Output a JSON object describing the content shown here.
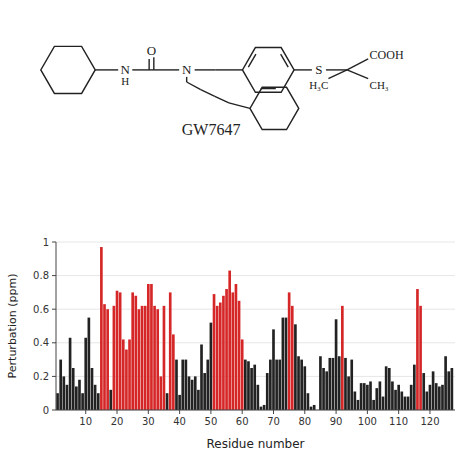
{
  "chart_data": {
    "type": "bar",
    "xlabel": "Residue number",
    "ylabel": "Perturbation (ppm)",
    "annotations": [
      "N",
      "H",
      "O",
      "N",
      "S",
      "COOH",
      "H₃C",
      "CH₃",
      "GW7647"
    ],
    "x": [
      1,
      2,
      3,
      4,
      5,
      6,
      7,
      8,
      9,
      10,
      11,
      12,
      13,
      14,
      15,
      16,
      17,
      18,
      19,
      20,
      21,
      22,
      23,
      24,
      25,
      26,
      27,
      28,
      29,
      30,
      31,
      32,
      33,
      34,
      35,
      36,
      37,
      38,
      39,
      40,
      41,
      42,
      43,
      44,
      45,
      46,
      47,
      48,
      49,
      50,
      51,
      52,
      53,
      54,
      55,
      56,
      57,
      58,
      59,
      60,
      61,
      62,
      63,
      64,
      65,
      66,
      67,
      68,
      69,
      70,
      71,
      72,
      73,
      74,
      75,
      76,
      77,
      78,
      79,
      80,
      81,
      82,
      83,
      84,
      85,
      86,
      87,
      88,
      89,
      90,
      91,
      92,
      93,
      94,
      95,
      96,
      97,
      98,
      99,
      100,
      101,
      102,
      103,
      104,
      105,
      106,
      107,
      108,
      109,
      110,
      111,
      112,
      113,
      114,
      115,
      116,
      117,
      118,
      119,
      120,
      121,
      122,
      123,
      124,
      125,
      126,
      127
    ],
    "values": [
      0.1,
      0.3,
      0.2,
      0.15,
      0.43,
      0.25,
      0.14,
      0.18,
      0.1,
      0.43,
      0.55,
      0.25,
      0.15,
      0.1,
      0.97,
      0.63,
      0.6,
      0.12,
      0.62,
      0.71,
      0.7,
      0.42,
      0.36,
      0.42,
      0.7,
      0.68,
      0.6,
      0.62,
      0.62,
      0.75,
      0.75,
      0.62,
      0.6,
      0.2,
      0.62,
      0.1,
      0.7,
      0.45,
      0.3,
      0.09,
      0.3,
      0.3,
      0.2,
      0.18,
      0.2,
      0.12,
      0.39,
      0.22,
      0.3,
      0.52,
      0.69,
      0.62,
      0.64,
      0.68,
      0.72,
      0.83,
      0.7,
      0.75,
      0.65,
      0.42,
      0.3,
      0.29,
      0.25,
      0.27,
      0.15,
      0.02,
      0.03,
      0.22,
      0.3,
      0.48,
      0.3,
      0.3,
      0.55,
      0.55,
      0.7,
      0.62,
      0.51,
      0.32,
      0.3,
      0.26,
      0.1,
      0.02,
      0.03,
      0.0,
      0.32,
      0.25,
      0.23,
      0.31,
      0.31,
      0.54,
      0.32,
      0.62,
      0.31,
      0.2,
      0.3,
      0.11,
      0.06,
      0.16,
      0.16,
      0.15,
      0.17,
      0.06,
      0.13,
      0.17,
      0.08,
      0.26,
      0.25,
      0.17,
      0.12,
      0.15,
      0.11,
      0.08,
      0.08,
      0.15,
      0.27,
      0.72,
      0.62,
      0.22,
      0.11,
      0.15,
      0.23,
      0.16,
      0.14,
      0.15,
      0.32,
      0.23,
      0.25
    ],
    "colors": [
      "black",
      "black",
      "black",
      "black",
      "black",
      "black",
      "black",
      "black",
      "black",
      "black",
      "black",
      "black",
      "black",
      "black",
      "red",
      "red",
      "red",
      "black",
      "red",
      "red",
      "red",
      "red",
      "red",
      "red",
      "red",
      "red",
      "red",
      "red",
      "red",
      "red",
      "red",
      "red",
      "red",
      "red",
      "red",
      "black",
      "red",
      "red",
      "black",
      "black",
      "black",
      "black",
      "black",
      "black",
      "black",
      "black",
      "black",
      "black",
      "black",
      "black",
      "red",
      "red",
      "red",
      "red",
      "red",
      "red",
      "red",
      "red",
      "red",
      "red",
      "black",
      "black",
      "black",
      "black",
      "black",
      "black",
      "black",
      "black",
      "black",
      "black",
      "black",
      "black",
      "black",
      "black",
      "red",
      "red",
      "black",
      "black",
      "black",
      "black",
      "black",
      "black",
      "black",
      "black",
      "black",
      "black",
      "black",
      "black",
      "black",
      "black",
      "black",
      "red",
      "black",
      "black",
      "black",
      "black",
      "black",
      "black",
      "black",
      "black",
      "black",
      "black",
      "black",
      "black",
      "black",
      "black",
      "black",
      "black",
      "black",
      "black",
      "black",
      "black",
      "black",
      "black",
      "black",
      "red",
      "red",
      "black",
      "black",
      "black",
      "black",
      "black",
      "black",
      "black",
      "black",
      "black",
      "black"
    ],
    "xlim": [
      0.5,
      128
    ],
    "xticks": [
      10,
      20,
      30,
      40,
      50,
      60,
      70,
      80,
      90,
      100,
      110,
      120
    ],
    "ylim": [
      0,
      1.0
    ],
    "yticks": [
      0,
      0.2,
      0.4,
      0.6,
      0.8,
      1
    ]
  }
}
